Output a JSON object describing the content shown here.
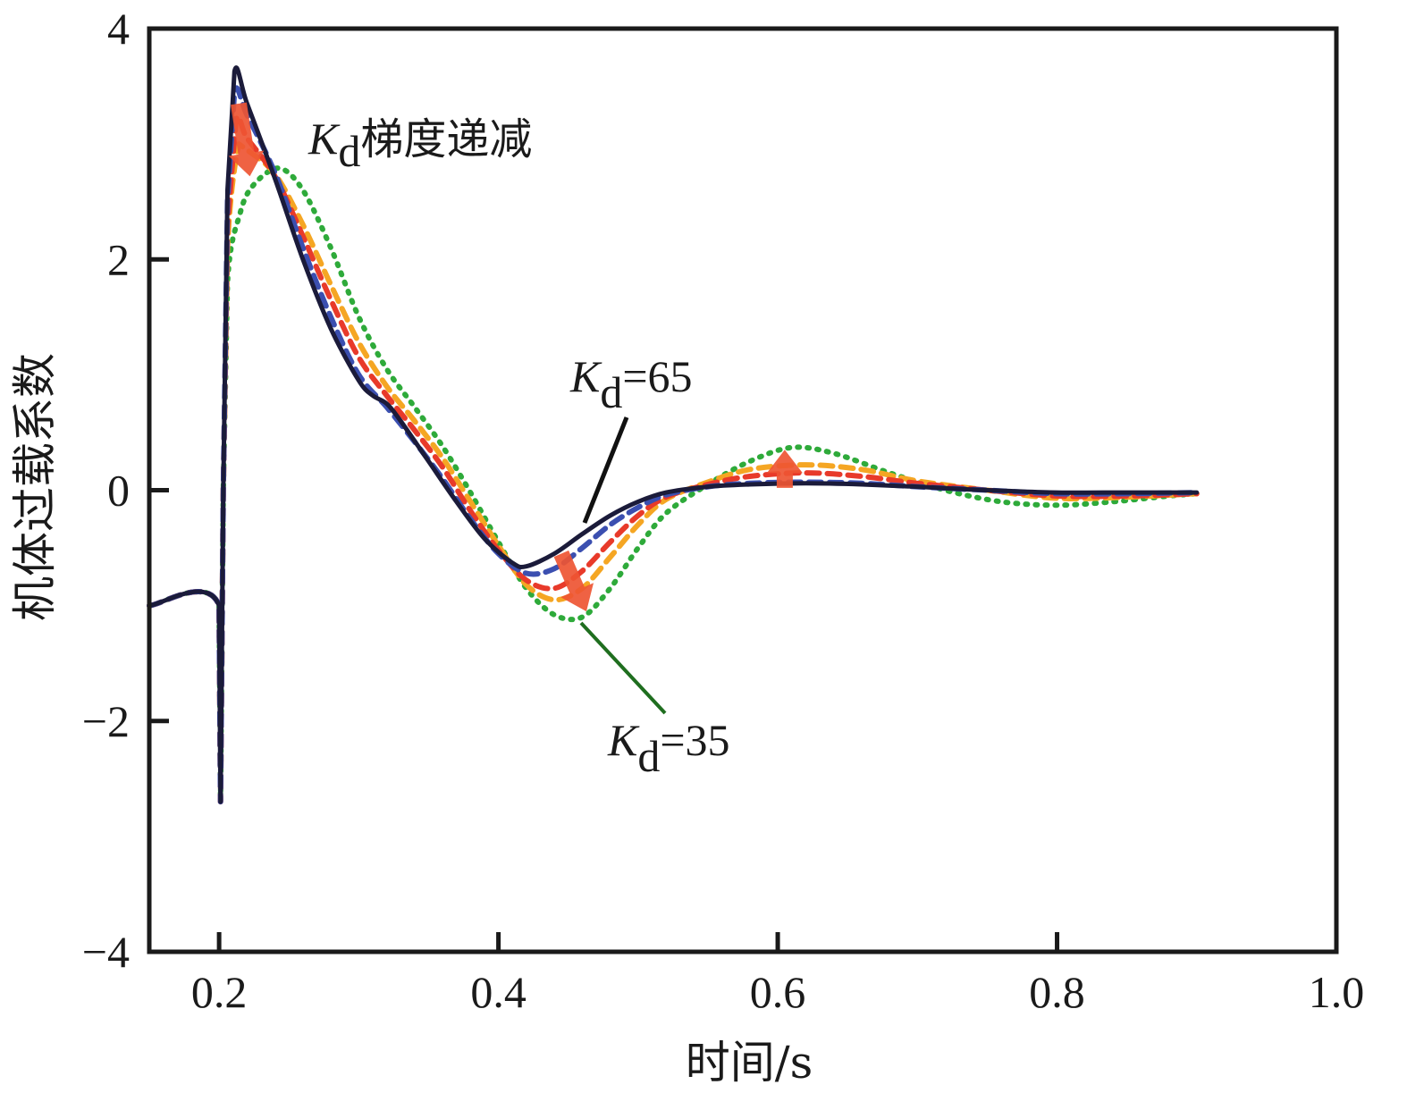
{
  "chart_data": {
    "type": "line",
    "title": "",
    "xlabel": "时间/s",
    "ylabel": "机体过载系数",
    "xlim": [
      0.15,
      1.0
    ],
    "ylim": [
      -4,
      4
    ],
    "xticks": [
      0.2,
      0.4,
      0.6,
      0.8,
      1.0
    ],
    "xtick_labels": [
      "0.2",
      "0.4",
      "0.6",
      "0.8",
      "1.0"
    ],
    "yticks": [
      4,
      2,
      0,
      -2,
      -4
    ],
    "ytick_labels": [
      "4",
      "2",
      "0",
      "−2",
      "−4"
    ],
    "grid": false,
    "annotations": {
      "trend": {
        "main": "K",
        "sub": "d",
        "rest": "梯度递减"
      },
      "kd65": {
        "main": "K",
        "sub": "d",
        "rest": "=65",
        "color": "#111111"
      },
      "kd35": {
        "main": "K",
        "sub": "d",
        "rest": "=35",
        "color": "#1f6e1f"
      }
    },
    "arrow_color": "#ee5533",
    "series": [
      {
        "key": "kd65",
        "color": "#1b1b3a",
        "style": "solid",
        "x": [
          0.15,
          0.2,
          0.201,
          0.203,
          0.206,
          0.211,
          0.22,
          0.24,
          0.26,
          0.28,
          0.3,
          0.31,
          0.32,
          0.33,
          0.35,
          0.37,
          0.39,
          0.41,
          0.42,
          0.44,
          0.46,
          0.48,
          0.5,
          0.52,
          0.55,
          0.58,
          0.62,
          0.66,
          0.7,
          0.75,
          0.8,
          0.85,
          0.9
        ],
        "y": [
          -1.0,
          -1.0,
          -2.7,
          0.0,
          2.6,
          3.63,
          3.35,
          2.7,
          2.0,
          1.4,
          0.95,
          0.82,
          0.75,
          0.6,
          0.25,
          -0.1,
          -0.42,
          -0.63,
          -0.66,
          -0.55,
          -0.38,
          -0.22,
          -0.1,
          -0.02,
          0.03,
          0.05,
          0.06,
          0.05,
          0.03,
          0.0,
          -0.02,
          -0.02,
          -0.02
        ]
      },
      {
        "key": "kd55",
        "color": "#3b4fb0",
        "style": "dashed",
        "x": [
          0.15,
          0.2,
          0.201,
          0.203,
          0.206,
          0.211,
          0.22,
          0.24,
          0.26,
          0.28,
          0.3,
          0.32,
          0.34,
          0.36,
          0.38,
          0.4,
          0.42,
          0.44,
          0.46,
          0.48,
          0.5,
          0.52,
          0.55,
          0.58,
          0.62,
          0.66,
          0.7,
          0.75,
          0.8,
          0.85,
          0.9
        ],
        "y": [
          -1.0,
          -1.0,
          -2.7,
          0.0,
          2.5,
          3.45,
          3.25,
          2.75,
          2.1,
          1.5,
          1.0,
          0.72,
          0.42,
          0.1,
          -0.25,
          -0.55,
          -0.72,
          -0.68,
          -0.5,
          -0.3,
          -0.15,
          -0.04,
          0.03,
          0.06,
          0.07,
          0.06,
          0.03,
          0.0,
          -0.03,
          -0.03,
          -0.02
        ]
      },
      {
        "key": "kd45",
        "color": "#e83a2a",
        "style": "dashed",
        "x": [
          0.15,
          0.2,
          0.201,
          0.203,
          0.206,
          0.212,
          0.22,
          0.24,
          0.26,
          0.28,
          0.3,
          0.32,
          0.34,
          0.36,
          0.38,
          0.4,
          0.42,
          0.44,
          0.46,
          0.48,
          0.5,
          0.52,
          0.55,
          0.58,
          0.62,
          0.66,
          0.7,
          0.75,
          0.8,
          0.85,
          0.9
        ],
        "y": [
          -1.0,
          -1.0,
          -2.7,
          0.0,
          2.3,
          3.2,
          3.05,
          2.72,
          2.2,
          1.65,
          1.15,
          0.82,
          0.52,
          0.2,
          -0.18,
          -0.52,
          -0.78,
          -0.85,
          -0.7,
          -0.45,
          -0.22,
          -0.06,
          0.05,
          0.12,
          0.15,
          0.12,
          0.06,
          0.0,
          -0.05,
          -0.05,
          -0.03
        ]
      },
      {
        "key": "kd40",
        "color": "#f5a623",
        "style": "dashed",
        "x": [
          0.15,
          0.2,
          0.201,
          0.203,
          0.206,
          0.214,
          0.22,
          0.24,
          0.26,
          0.28,
          0.3,
          0.32,
          0.34,
          0.36,
          0.38,
          0.4,
          0.42,
          0.44,
          0.46,
          0.48,
          0.5,
          0.52,
          0.55,
          0.58,
          0.62,
          0.66,
          0.7,
          0.75,
          0.8,
          0.85,
          0.9
        ],
        "y": [
          -1.0,
          -1.0,
          -2.7,
          0.0,
          2.1,
          3.0,
          2.95,
          2.74,
          2.3,
          1.78,
          1.28,
          0.9,
          0.6,
          0.28,
          -0.1,
          -0.48,
          -0.82,
          -0.95,
          -0.85,
          -0.58,
          -0.3,
          -0.08,
          0.07,
          0.18,
          0.22,
          0.18,
          0.08,
          0.0,
          -0.07,
          -0.06,
          -0.03
        ]
      },
      {
        "key": "kd35",
        "color": "#2eaa3a",
        "style": "dotted",
        "x": [
          0.15,
          0.2,
          0.201,
          0.203,
          0.206,
          0.215,
          0.225,
          0.243,
          0.26,
          0.28,
          0.3,
          0.32,
          0.34,
          0.36,
          0.38,
          0.4,
          0.42,
          0.44,
          0.46,
          0.48,
          0.5,
          0.52,
          0.55,
          0.58,
          0.61,
          0.64,
          0.68,
          0.72,
          0.76,
          0.8,
          0.84,
          0.88,
          0.9
        ],
        "y": [
          -1.0,
          -1.0,
          -2.7,
          0.0,
          1.8,
          2.4,
          2.65,
          2.79,
          2.6,
          2.1,
          1.5,
          1.05,
          0.72,
          0.38,
          -0.02,
          -0.45,
          -0.85,
          -1.08,
          -1.1,
          -0.85,
          -0.5,
          -0.2,
          0.05,
          0.25,
          0.37,
          0.32,
          0.15,
          0.0,
          -0.1,
          -0.13,
          -0.1,
          -0.05,
          -0.03
        ]
      }
    ]
  }
}
